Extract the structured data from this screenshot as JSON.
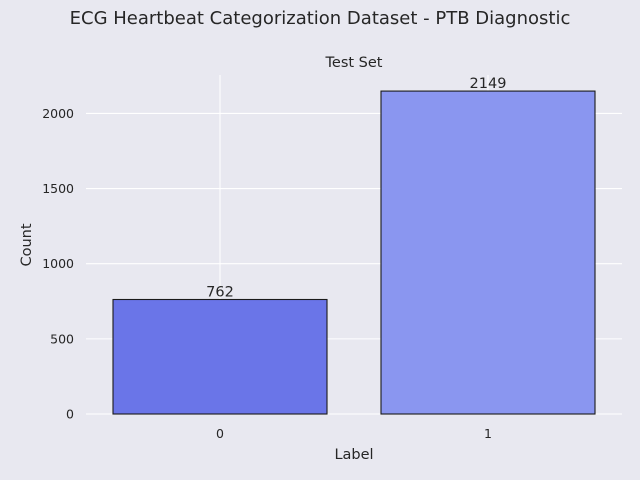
{
  "figure": {
    "suptitle": "ECG Heartbeat Categorization Dataset - PTB Diagnostic"
  },
  "chart_data": {
    "type": "bar",
    "title": "Test Set",
    "xlabel": "Label",
    "ylabel": "Count",
    "categories": [
      "0",
      "1"
    ],
    "values": [
      762,
      2149
    ],
    "data_labels": [
      "762",
      "2149"
    ],
    "ylim": [
      0,
      2256
    ],
    "yticks": [
      0,
      500,
      1000,
      1500,
      2000
    ],
    "grid": true,
    "bar_colors": [
      "#6a75e8",
      "#8a96f0"
    ],
    "background_color": "#e8e8f0",
    "plot_background_color": "#e8e8f0",
    "grid_color": "#ffffff",
    "edge_color": "#1a1a1a"
  }
}
